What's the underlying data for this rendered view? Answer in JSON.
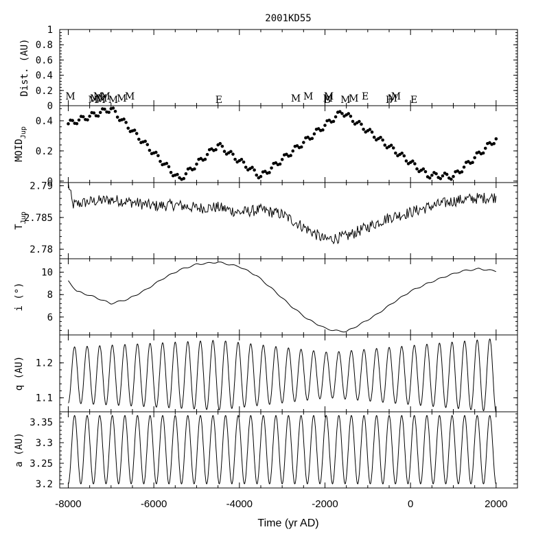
{
  "chart_data": {
    "type": "line",
    "title": "2001KD55",
    "xlabel": "Time (yr AD)",
    "xlim": [
      -8000,
      2000
    ],
    "xticks": [
      -8000,
      -6000,
      -4000,
      -2000,
      0,
      2000
    ],
    "xtick_labels": [
      "-8000",
      "-6000",
      "-4000",
      "-2000",
      "0",
      "2000"
    ],
    "panels": [
      {
        "id": "dist",
        "ylabel": "Dist. (AU)",
        "ylim": [
          0,
          1
        ],
        "yticks": [
          "0",
          "0.2",
          "0.4",
          "0.6",
          "0.8",
          "1"
        ],
        "ytick_values": [
          0,
          0.2,
          0.4,
          0.6,
          0.8,
          1
        ],
        "events": [
          {
            "t": -7950,
            "label": "M"
          },
          {
            "t": -7420,
            "label": "M"
          },
          {
            "t": -7380,
            "label": "M"
          },
          {
            "t": -7300,
            "label": "M"
          },
          {
            "t": -7240,
            "label": "M"
          },
          {
            "t": -7200,
            "label": "M"
          },
          {
            "t": -7130,
            "label": "M"
          },
          {
            "t": -6950,
            "label": "M"
          },
          {
            "t": -6750,
            "label": "M"
          },
          {
            "t": -6560,
            "label": "M"
          },
          {
            "t": -4480,
            "label": "E"
          },
          {
            "t": -2680,
            "label": "M"
          },
          {
            "t": -2390,
            "label": "M"
          },
          {
            "t": -1950,
            "label": "B"
          },
          {
            "t": -1930,
            "label": "M"
          },
          {
            "t": -1910,
            "label": "M"
          },
          {
            "t": -1520,
            "label": "M"
          },
          {
            "t": -1330,
            "label": "M"
          },
          {
            "t": -1060,
            "label": "E"
          },
          {
            "t": -500,
            "label": "B"
          },
          {
            "t": -420,
            "label": "M"
          },
          {
            "t": -340,
            "label": "M"
          },
          {
            "t": 80,
            "label": "E"
          }
        ]
      },
      {
        "id": "moid",
        "ylabel": "MOID",
        "ylabel_sub": "Jup",
        "ylim": [
          -0.01,
          0.5
        ],
        "yticks": [
          "0",
          "0.2",
          "0.4"
        ],
        "ytick_values": [
          0,
          0.2,
          0.4
        ],
        "style": "dots",
        "x": [
          -8000,
          -7000,
          -5400,
          -4500,
          -3500,
          -1600,
          400,
          1000,
          2000
        ],
        "values": [
          0.38,
          0.48,
          0.01,
          0.24,
          0.03,
          0.46,
          0.04,
          0.03,
          0.28
        ],
        "ripple_amplitude": 0.02,
        "ripple_period": 250
      },
      {
        "id": "tjup",
        "ylabel": "T",
        "ylabel_sub": "Jup",
        "ylim": [
          2.7785,
          2.7905
        ],
        "yticks": [
          "2.78",
          "2.785",
          "2.79"
        ],
        "ytick_values": [
          2.78,
          2.785,
          2.79
        ],
        "style": "line",
        "x": [
          -8000,
          -7900,
          -7500,
          -7000,
          -6500,
          -6000,
          -5500,
          -5000,
          -4500,
          -4000,
          -3500,
          -3000,
          -2500,
          -2000,
          -1500,
          -1000,
          -500,
          0,
          500,
          1000,
          1500,
          2000
        ],
        "values": [
          2.7905,
          2.787,
          2.7875,
          2.7878,
          2.7874,
          2.7868,
          2.787,
          2.7865,
          2.7866,
          2.7858,
          2.7862,
          2.7855,
          2.7835,
          2.7815,
          2.782,
          2.7835,
          2.785,
          2.7858,
          2.7868,
          2.7876,
          2.788,
          2.7882
        ],
        "noise_amplitude": 0.0009
      },
      {
        "id": "incl",
        "ylabel": "i (°)",
        "ylim": [
          4.4,
          11.2
        ],
        "yticks": [
          "6",
          "8",
          "10"
        ],
        "ytick_values": [
          6,
          8,
          10
        ],
        "style": "line",
        "x": [
          -8000,
          -7800,
          -7400,
          -7000,
          -6600,
          -6200,
          -5800,
          -5400,
          -5000,
          -4500,
          -4000,
          -3600,
          -3200,
          -2800,
          -2400,
          -2000,
          -1800,
          -1500,
          -1200,
          -800,
          -400,
          0,
          400,
          800,
          1200,
          1600,
          2000
        ],
        "values": [
          9.2,
          8.3,
          7.8,
          7.2,
          7.6,
          8.4,
          9.4,
          10.2,
          10.7,
          10.9,
          10.5,
          9.7,
          8.4,
          7.0,
          5.8,
          5.0,
          4.8,
          4.7,
          5.3,
          6.2,
          7.3,
          8.3,
          9.0,
          9.6,
          10.1,
          10.3,
          10.1
        ]
      },
      {
        "id": "q",
        "ylabel": "q (AU)",
        "ylim": [
          1.06,
          1.28
        ],
        "yticks": [
          "1.1",
          "1.2"
        ],
        "ytick_values": [
          1.1,
          1.2
        ],
        "style": "oscillation",
        "cycles": 34,
        "mean": 1.165,
        "amp_x": [
          -8000,
          -4500,
          -1900,
          2000
        ],
        "amp_values": [
          0.08,
          0.1,
          0.065,
          0.105
        ]
      },
      {
        "id": "a",
        "ylabel": "a (AU)",
        "ylim": [
          3.19,
          3.375
        ],
        "yticks": [
          "3.2",
          "3.25",
          "3.3",
          "3.35"
        ],
        "ytick_values": [
          3.2,
          3.25,
          3.3,
          3.35
        ],
        "style": "oscillation",
        "cycles": 34,
        "mean": 3.283,
        "amp_x": [
          -8000,
          2000
        ],
        "amp_values": [
          0.083,
          0.083
        ]
      }
    ]
  }
}
